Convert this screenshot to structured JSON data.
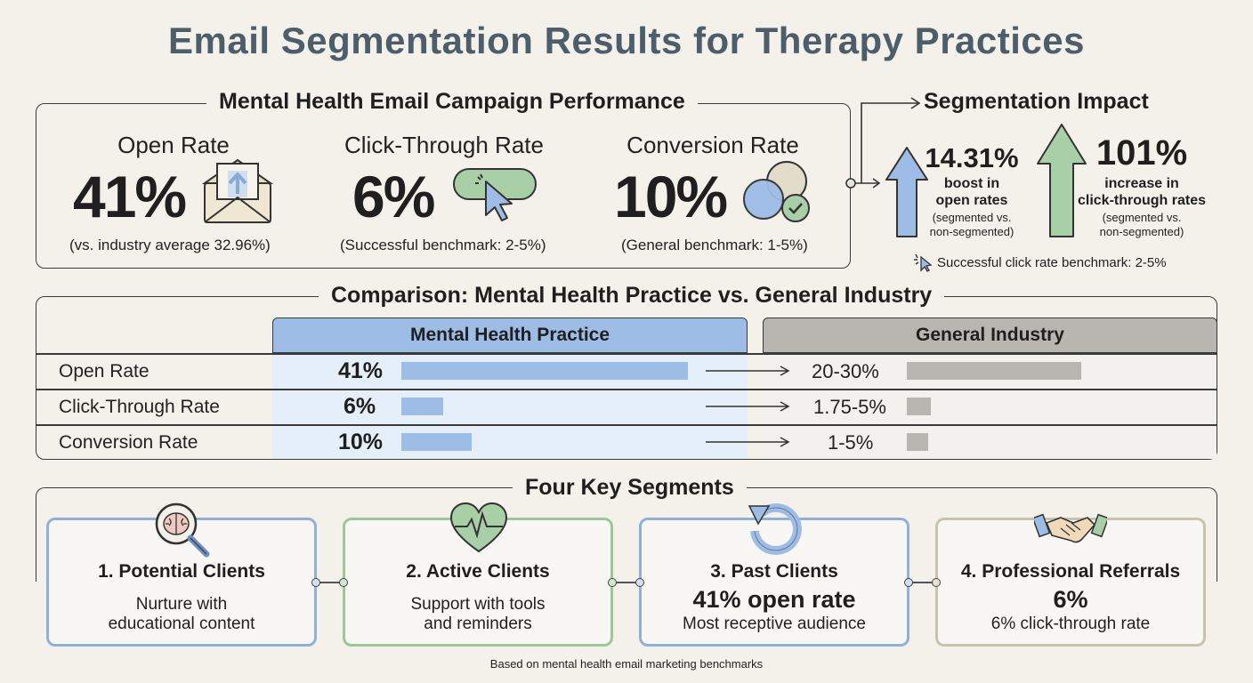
{
  "title": "Email Segmentation Results for Therapy Practices",
  "performance": {
    "heading": "Mental Health Email Campaign Performance",
    "metrics": [
      {
        "label": "Open Rate",
        "value": "41%",
        "note": "(vs. industry average 32.96%)",
        "icon": "envelope-upload-icon"
      },
      {
        "label": "Click-Through Rate",
        "value": "6%",
        "note": "(Successful benchmark: 2-5%)",
        "icon": "cursor-click-icon"
      },
      {
        "label": "Conversion Rate",
        "value": "10%",
        "note": "(General benchmark: 1-5%)",
        "icon": "venn-check-icon"
      }
    ]
  },
  "impact": {
    "heading": "Segmentation Impact",
    "items": [
      {
        "value": "14.31%",
        "line1": "boost in",
        "line2": "open rates",
        "sub1": "(segmented vs.",
        "sub2": "non-segmented)",
        "color": "#9dbde6"
      },
      {
        "value": "101%",
        "line1": "increase in",
        "line2": "click-through rates",
        "sub1": "(segmented vs.",
        "sub2": "non-segmented)",
        "color": "#a9cfa6"
      }
    ],
    "benchmark": "Successful click rate benchmark: 2-5%"
  },
  "comparison": {
    "heading": "Comparison: Mental Health Practice vs. General Industry",
    "col_mh": "Mental Health Practice",
    "col_gi": "General Industry"
  },
  "chart_data": {
    "type": "bar",
    "title": "Comparison: Mental Health Practice vs. General Industry",
    "categories": [
      "Open Rate",
      "Click-Through Rate",
      "Conversion Rate"
    ],
    "series": [
      {
        "name": "Mental Health Practice",
        "values": [
          41,
          6,
          10
        ],
        "labels": [
          "41%",
          "6%",
          "10%"
        ]
      },
      {
        "name": "General Industry",
        "values": [
          25,
          3.4,
          3
        ],
        "labels": [
          "20-30%",
          "1.75-5%",
          "1-5%"
        ]
      }
    ],
    "colors": {
      "mental_health": "#9dbde6",
      "general_industry": "#b9b6b1"
    }
  },
  "segments": {
    "heading": "Four Key Segments",
    "items": [
      {
        "title": "1. Potential Clients",
        "line1": "Nurture with",
        "line2": "educational content",
        "icon": "brain-magnifier-icon",
        "color": "#8fb0d8"
      },
      {
        "title": "2. Active Clients",
        "line1": "Support with tools",
        "line2": "and reminders",
        "icon": "heart-pulse-icon",
        "color": "#9cc79a"
      },
      {
        "title": "3. Past Clients",
        "big": "41% open rate",
        "line2": "Most receptive audience",
        "icon": "circular-arrow-icon",
        "color": "#8fb0d8"
      },
      {
        "title": "4. Professional Referrals",
        "big": "6%",
        "line2": "6% click-through rate",
        "icon": "handshake-icon",
        "color": "#c9c2ae"
      }
    ]
  },
  "footer": "Based on mental health email marketing benchmarks"
}
